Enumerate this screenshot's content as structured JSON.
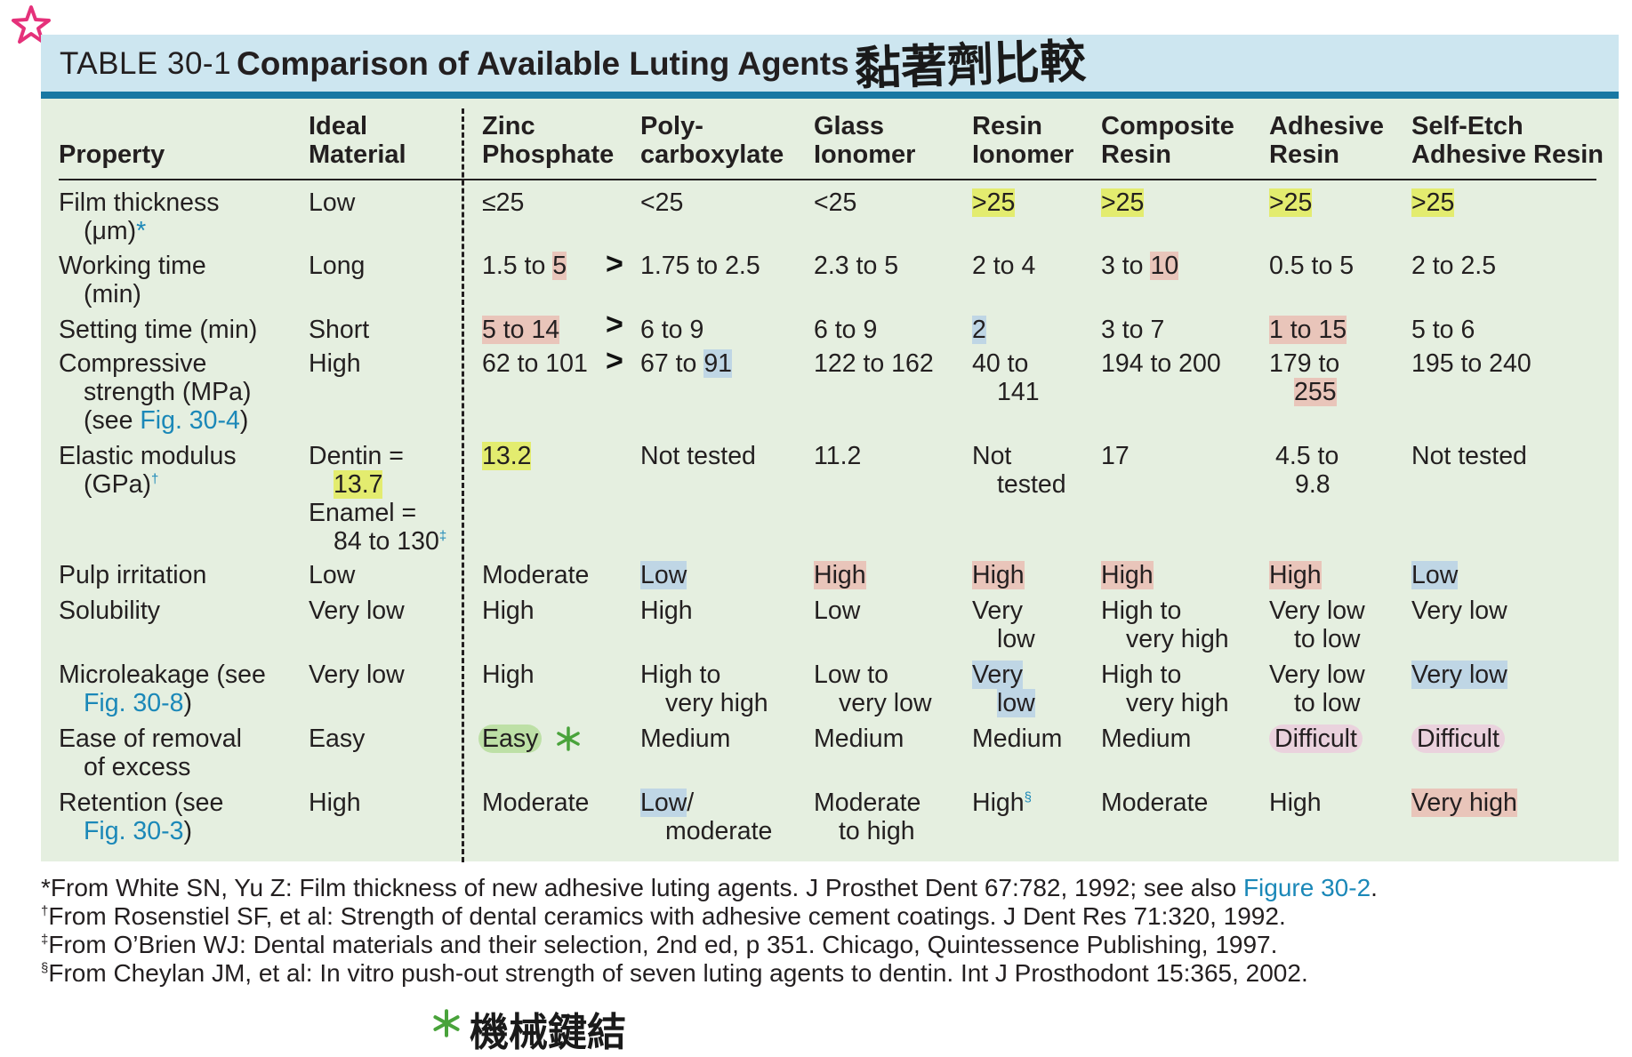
{
  "header": {
    "table_label": "TABLE 30-1",
    "title": "Comparison of Available Luting Agents",
    "jp_note": "黏著劑比較"
  },
  "columns": {
    "property": "Property",
    "ideal_1": "Ideal",
    "ideal_2": "Material",
    "zinc_1": "Zinc",
    "zinc_2": "Phosphate",
    "poly_1": "Poly-",
    "poly_2": "carboxylate",
    "glass_1": "Glass",
    "glass_2": "Ionomer",
    "resin_iono_1": "Resin",
    "resin_iono_2": "Ionomer",
    "composite_1": "Composite",
    "composite_2": "Resin",
    "adhesive_1": "Adhesive",
    "adhesive_2": "Resin",
    "self_etch_1": "Self-Etch",
    "self_etch_2": "Adhesive Resin"
  },
  "rows": {
    "film": {
      "label_1": "Film thickness",
      "label_2": "(μm)",
      "label_star": "*",
      "ideal": "Low",
      "zinc": "≤25",
      "poly": "<25",
      "glass": "<25",
      "resin_iono": ">25",
      "composite": ">25",
      "adhesive": ">25",
      "self_etch": ">25"
    },
    "working": {
      "label_1": "Working time",
      "label_2": "(min)",
      "ideal": "Long",
      "zinc_a": "1.5 to ",
      "zinc_b": "5",
      "poly": "1.75 to 2.5",
      "glass": "2.3 to 5",
      "resin_iono": "2 to 4",
      "composite_a": "3 to ",
      "composite_b": "10",
      "adhesive": "0.5 to 5",
      "self_etch": "2 to 2.5"
    },
    "setting": {
      "label_1": "Setting time (min)",
      "ideal": "Short",
      "zinc": "5 to 14",
      "poly": "6 to 9",
      "glass": "6 to 9",
      "resin_iono": "2",
      "composite": "3 to 7",
      "adhesive": "1 to 15",
      "self_etch": "5 to 6"
    },
    "compressive": {
      "label_1": "Compressive",
      "label_2": "strength (MPa)",
      "label_3a": "(see ",
      "label_3_link": "Fig. 30-4",
      "label_3b": ")",
      "ideal": "High",
      "zinc": "62 to 101",
      "poly_a": "67 to ",
      "poly_b": "91",
      "glass": "122 to 162",
      "resin_iono_1": "40 to",
      "resin_iono_2": "141",
      "composite": "194 to 200",
      "adhesive_1": "179 to",
      "adhesive_2": "255",
      "self_etch": "195 to 240"
    },
    "elastic": {
      "label_1": "Elastic modulus",
      "label_2": "(GPa)",
      "label_dagger": "†",
      "ideal_1": "Dentin =",
      "ideal_2": "13.7",
      "ideal_3": "Enamel =",
      "ideal_4": "84 to 130",
      "ideal_ddagger": "‡",
      "zinc": "13.2",
      "poly": "Not tested",
      "glass": "11.2",
      "resin_iono_1": "Not",
      "resin_iono_2": "tested",
      "composite": "17",
      "adhesive_1": "4.5 to",
      "adhesive_2": "9.8",
      "self_etch": "Not tested"
    },
    "pulp": {
      "label_1": "Pulp irritation",
      "ideal": "Low",
      "zinc": "Moderate",
      "poly": "Low",
      "glass": "High",
      "resin_iono": "High",
      "composite": "High",
      "adhesive": "High",
      "self_etch": "Low"
    },
    "solubility": {
      "label_1": "Solubility",
      "ideal": "Very low",
      "zinc": "High",
      "poly": "High",
      "glass": "Low",
      "resin_iono_1": "Very",
      "resin_iono_2": "low",
      "composite_1": "High to",
      "composite_2": "very high",
      "adhesive_1": "Very low",
      "adhesive_2": "to low",
      "self_etch": "Very low"
    },
    "microleakage": {
      "label_1": "Microleakage (see",
      "label_2_link": "Fig. 30-8",
      "label_2b": ")",
      "ideal": "Very low",
      "zinc": "High",
      "poly_1": "High to",
      "poly_2": "very high",
      "glass_1": "Low to",
      "glass_2": "very low",
      "resin_iono_1": "Very",
      "resin_iono_2": "low",
      "composite_1": "High to",
      "composite_2": "very high",
      "adhesive_1": "Very low",
      "adhesive_2": "to low",
      "self_etch": "Very low"
    },
    "removal": {
      "label_1": "Ease of removal",
      "label_2": "of excess",
      "ideal": "Easy",
      "zinc": "Easy",
      "poly": "Medium",
      "glass": "Medium",
      "resin_iono": "Medium",
      "composite": "Medium",
      "adhesive": "Difficult",
      "self_etch": "Difficult"
    },
    "retention": {
      "label_1": "Retention (see",
      "label_2_link": "Fig. 30-3",
      "label_2b": ")",
      "ideal": "High",
      "zinc": "Moderate",
      "poly_1a": "Low",
      "poly_1b": "/",
      "poly_2": "moderate",
      "glass_1": "Moderate",
      "glass_2": "to high",
      "resin_iono": "High",
      "resin_iono_sup": "§",
      "composite": "Moderate",
      "adhesive": "High",
      "self_etch": "Very high"
    }
  },
  "footnotes": {
    "f1_mark": "*",
    "f1_text": "From White SN, Yu Z: Film thickness of new adhesive luting agents. J Prosthet Dent 67:782, 1992; see also ",
    "f1_link": "Figure 30-2",
    "f1_end": ".",
    "f2_mark": "†",
    "f2_text": "From Rosenstiel SF, et al: Strength of dental ceramics with adhesive cement coatings. J Dent Res 71:320, 1992.",
    "f3_mark": "‡",
    "f3_text": "From O’Brien WJ: Dental materials and their selection, 2nd ed, p 351. Chicago, Quintessence Publishing, 1997.",
    "f4_mark": "§",
    "f4_text": "From Cheylan JM, et al: In vitro push-out strength of seven luting agents to dentin. Int J Prosthodont 15:365, 2002."
  },
  "annotations": {
    "bottom_note": "機械鍵結",
    "arrow_glyph": ">"
  },
  "colors": {
    "title_bar": "#cde6f0",
    "title_rule": "#1978a3",
    "panel": "#e5efe0",
    "highlight_yellow": "#e3ec6f",
    "highlight_red": "#e9c5ba",
    "highlight_blue": "#bfd6e5",
    "highlight_green": "#bde0a6",
    "highlight_pink": "#ead2dd",
    "link": "#1b88b8",
    "star_pink": "#e5317a",
    "star_green": "#49a33b"
  },
  "icons": [
    "pink-star-icon",
    "green-asterisk-icon",
    "arrow-icon"
  ]
}
